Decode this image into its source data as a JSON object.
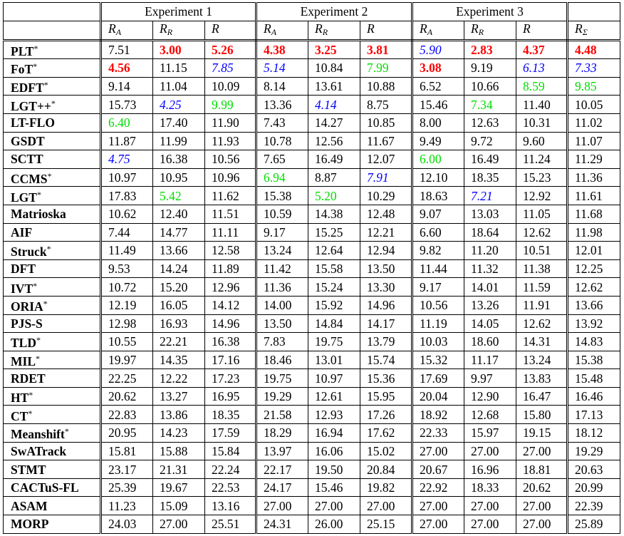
{
  "groups": [
    "Experiment 1",
    "Experiment 2",
    "Experiment 3"
  ],
  "subheaders": [
    {
      "base": "R",
      "sub": "A"
    },
    {
      "base": "R",
      "sub": "R"
    },
    {
      "base": "R",
      "sub": ""
    },
    {
      "base": "R",
      "sub": "A"
    },
    {
      "base": "R",
      "sub": "R"
    },
    {
      "base": "R",
      "sub": ""
    },
    {
      "base": "R",
      "sub": "A"
    },
    {
      "base": "R",
      "sub": "R"
    },
    {
      "base": "R",
      "sub": ""
    },
    {
      "base": "R",
      "sub": "Σ"
    }
  ],
  "colors": {
    "first": "#ff0000",
    "second": "#0000ff",
    "third": "#00dd00"
  },
  "rows": [
    {
      "name": "PLT",
      "star": true,
      "v": [
        "7.51",
        "3.00",
        "5.26",
        "4.38",
        "3.25",
        "3.81",
        "5.90",
        "2.83",
        "4.37",
        "4.48"
      ],
      "s": [
        "",
        "r",
        "r",
        "r",
        "r",
        "r",
        "b",
        "r",
        "r",
        "r"
      ]
    },
    {
      "name": "FoT",
      "star": true,
      "v": [
        "4.56",
        "11.15",
        "7.85",
        "5.14",
        "10.84",
        "7.99",
        "3.08",
        "9.19",
        "6.13",
        "7.33"
      ],
      "s": [
        "r",
        "",
        "b",
        "b",
        "",
        "g",
        "r",
        "",
        "b",
        "b"
      ]
    },
    {
      "name": "EDFT",
      "star": true,
      "v": [
        "9.14",
        "11.04",
        "10.09",
        "8.14",
        "13.61",
        "10.88",
        "6.52",
        "10.66",
        "8.59",
        "9.85"
      ],
      "s": [
        "",
        "",
        "",
        "",
        "",
        "",
        "",
        "",
        "g",
        "g"
      ]
    },
    {
      "name": "LGT++",
      "star": true,
      "v": [
        "15.73",
        "4.25",
        "9.99",
        "13.36",
        "4.14",
        "8.75",
        "15.46",
        "7.34",
        "11.40",
        "10.05"
      ],
      "s": [
        "",
        "b",
        "g",
        "",
        "b",
        "",
        "",
        "g",
        "",
        ""
      ]
    },
    {
      "name": "LT-FLO",
      "star": false,
      "v": [
        "6.40",
        "17.40",
        "11.90",
        "7.43",
        "14.27",
        "10.85",
        "8.00",
        "12.63",
        "10.31",
        "11.02"
      ],
      "s": [
        "g",
        "",
        "",
        "",
        "",
        "",
        "",
        "",
        "",
        ""
      ]
    },
    {
      "name": "GSDT",
      "star": false,
      "v": [
        "11.87",
        "11.99",
        "11.93",
        "10.78",
        "12.56",
        "11.67",
        "9.49",
        "9.72",
        "9.60",
        "11.07"
      ],
      "s": [
        "",
        "",
        "",
        "",
        "",
        "",
        "",
        "",
        "",
        ""
      ]
    },
    {
      "name": "SCTT",
      "star": false,
      "v": [
        "4.75",
        "16.38",
        "10.56",
        "7.65",
        "16.49",
        "12.07",
        "6.00",
        "16.49",
        "11.24",
        "11.29"
      ],
      "s": [
        "b",
        "",
        "",
        "",
        "",
        "",
        "g",
        "",
        "",
        ""
      ]
    },
    {
      "name": "CCMS",
      "star": true,
      "v": [
        "10.97",
        "10.95",
        "10.96",
        "6.94",
        "8.87",
        "7.91",
        "12.10",
        "18.35",
        "15.23",
        "11.36"
      ],
      "s": [
        "",
        "",
        "",
        "g",
        "",
        "b",
        "",
        "",
        "",
        ""
      ]
    },
    {
      "name": "LGT",
      "star": true,
      "v": [
        "17.83",
        "5.42",
        "11.62",
        "15.38",
        "5.20",
        "10.29",
        "18.63",
        "7.21",
        "12.92",
        "11.61"
      ],
      "s": [
        "",
        "g",
        "",
        "",
        "g",
        "",
        "",
        "b",
        "",
        ""
      ]
    },
    {
      "name": "Matrioska",
      "star": false,
      "v": [
        "10.62",
        "12.40",
        "11.51",
        "10.59",
        "14.38",
        "12.48",
        "9.07",
        "13.03",
        "11.05",
        "11.68"
      ],
      "s": [
        "",
        "",
        "",
        "",
        "",
        "",
        "",
        "",
        "",
        ""
      ]
    },
    {
      "name": "AIF",
      "star": false,
      "v": [
        "7.44",
        "14.77",
        "11.11",
        "9.17",
        "15.25",
        "12.21",
        "6.60",
        "18.64",
        "12.62",
        "11.98"
      ],
      "s": [
        "",
        "",
        "",
        "",
        "",
        "",
        "",
        "",
        "",
        ""
      ]
    },
    {
      "name": "Struck",
      "star": true,
      "v": [
        "11.49",
        "13.66",
        "12.58",
        "13.24",
        "12.64",
        "12.94",
        "9.82",
        "11.20",
        "10.51",
        "12.01"
      ],
      "s": [
        "",
        "",
        "",
        "",
        "",
        "",
        "",
        "",
        "",
        ""
      ]
    },
    {
      "name": "DFT",
      "star": false,
      "v": [
        "9.53",
        "14.24",
        "11.89",
        "11.42",
        "15.58",
        "13.50",
        "11.44",
        "11.32",
        "11.38",
        "12.25"
      ],
      "s": [
        "",
        "",
        "",
        "",
        "",
        "",
        "",
        "",
        "",
        ""
      ]
    },
    {
      "name": "IVT",
      "star": true,
      "v": [
        "10.72",
        "15.20",
        "12.96",
        "11.36",
        "15.24",
        "13.30",
        "9.17",
        "14.01",
        "11.59",
        "12.62"
      ],
      "s": [
        "",
        "",
        "",
        "",
        "",
        "",
        "",
        "",
        "",
        ""
      ]
    },
    {
      "name": "ORIA",
      "star": true,
      "v": [
        "12.19",
        "16.05",
        "14.12",
        "14.00",
        "15.92",
        "14.96",
        "10.56",
        "13.26",
        "11.91",
        "13.66"
      ],
      "s": [
        "",
        "",
        "",
        "",
        "",
        "",
        "",
        "",
        "",
        ""
      ]
    },
    {
      "name": "PJS-S",
      "star": false,
      "v": [
        "12.98",
        "16.93",
        "14.96",
        "13.50",
        "14.84",
        "14.17",
        "11.19",
        "14.05",
        "12.62",
        "13.92"
      ],
      "s": [
        "",
        "",
        "",
        "",
        "",
        "",
        "",
        "",
        "",
        ""
      ]
    },
    {
      "name": "TLD",
      "star": true,
      "v": [
        "10.55",
        "22.21",
        "16.38",
        "7.83",
        "19.75",
        "13.79",
        "10.03",
        "18.60",
        "14.31",
        "14.83"
      ],
      "s": [
        "",
        "",
        "",
        "",
        "",
        "",
        "",
        "",
        "",
        ""
      ]
    },
    {
      "name": "MIL",
      "star": true,
      "v": [
        "19.97",
        "14.35",
        "17.16",
        "18.46",
        "13.01",
        "15.74",
        "15.32",
        "11.17",
        "13.24",
        "15.38"
      ],
      "s": [
        "",
        "",
        "",
        "",
        "",
        "",
        "",
        "",
        "",
        ""
      ]
    },
    {
      "name": "RDET",
      "star": false,
      "v": [
        "22.25",
        "12.22",
        "17.23",
        "19.75",
        "10.97",
        "15.36",
        "17.69",
        "9.97",
        "13.83",
        "15.48"
      ],
      "s": [
        "",
        "",
        "",
        "",
        "",
        "",
        "",
        "",
        "",
        ""
      ]
    },
    {
      "name": "HT",
      "star": true,
      "v": [
        "20.62",
        "13.27",
        "16.95",
        "19.29",
        "12.61",
        "15.95",
        "20.04",
        "12.90",
        "16.47",
        "16.46"
      ],
      "s": [
        "",
        "",
        "",
        "",
        "",
        "",
        "",
        "",
        "",
        ""
      ]
    },
    {
      "name": "CT",
      "star": true,
      "v": [
        "22.83",
        "13.86",
        "18.35",
        "21.58",
        "12.93",
        "17.26",
        "18.92",
        "12.68",
        "15.80",
        "17.13"
      ],
      "s": [
        "",
        "",
        "",
        "",
        "",
        "",
        "",
        "",
        "",
        ""
      ]
    },
    {
      "name": "Meanshift",
      "star": true,
      "v": [
        "20.95",
        "14.23",
        "17.59",
        "18.29",
        "16.94",
        "17.62",
        "22.33",
        "15.97",
        "19.15",
        "18.12"
      ],
      "s": [
        "",
        "",
        "",
        "",
        "",
        "",
        "",
        "",
        "",
        ""
      ]
    },
    {
      "name": "SwATrack",
      "star": false,
      "v": [
        "15.81",
        "15.88",
        "15.84",
        "13.97",
        "16.06",
        "15.02",
        "27.00",
        "27.00",
        "27.00",
        "19.29"
      ],
      "s": [
        "",
        "",
        "",
        "",
        "",
        "",
        "",
        "",
        "",
        ""
      ]
    },
    {
      "name": "STMT",
      "star": false,
      "v": [
        "23.17",
        "21.31",
        "22.24",
        "22.17",
        "19.50",
        "20.84",
        "20.67",
        "16.96",
        "18.81",
        "20.63"
      ],
      "s": [
        "",
        "",
        "",
        "",
        "",
        "",
        "",
        "",
        "",
        ""
      ]
    },
    {
      "name": "CACTuS-FL",
      "star": false,
      "v": [
        "25.39",
        "19.67",
        "22.53",
        "24.17",
        "15.46",
        "19.82",
        "22.92",
        "18.33",
        "20.62",
        "20.99"
      ],
      "s": [
        "",
        "",
        "",
        "",
        "",
        "",
        "",
        "",
        "",
        ""
      ]
    },
    {
      "name": "ASAM",
      "star": false,
      "v": [
        "11.23",
        "15.09",
        "13.16",
        "27.00",
        "27.00",
        "27.00",
        "27.00",
        "27.00",
        "27.00",
        "22.39"
      ],
      "s": [
        "",
        "",
        "",
        "",
        "",
        "",
        "",
        "",
        "",
        ""
      ]
    },
    {
      "name": "MORP",
      "star": false,
      "v": [
        "24.03",
        "27.00",
        "25.51",
        "24.31",
        "26.00",
        "25.15",
        "27.00",
        "27.00",
        "27.00",
        "25.89"
      ],
      "s": [
        "",
        "",
        "",
        "",
        "",
        "",
        "",
        "",
        "",
        ""
      ]
    }
  ]
}
